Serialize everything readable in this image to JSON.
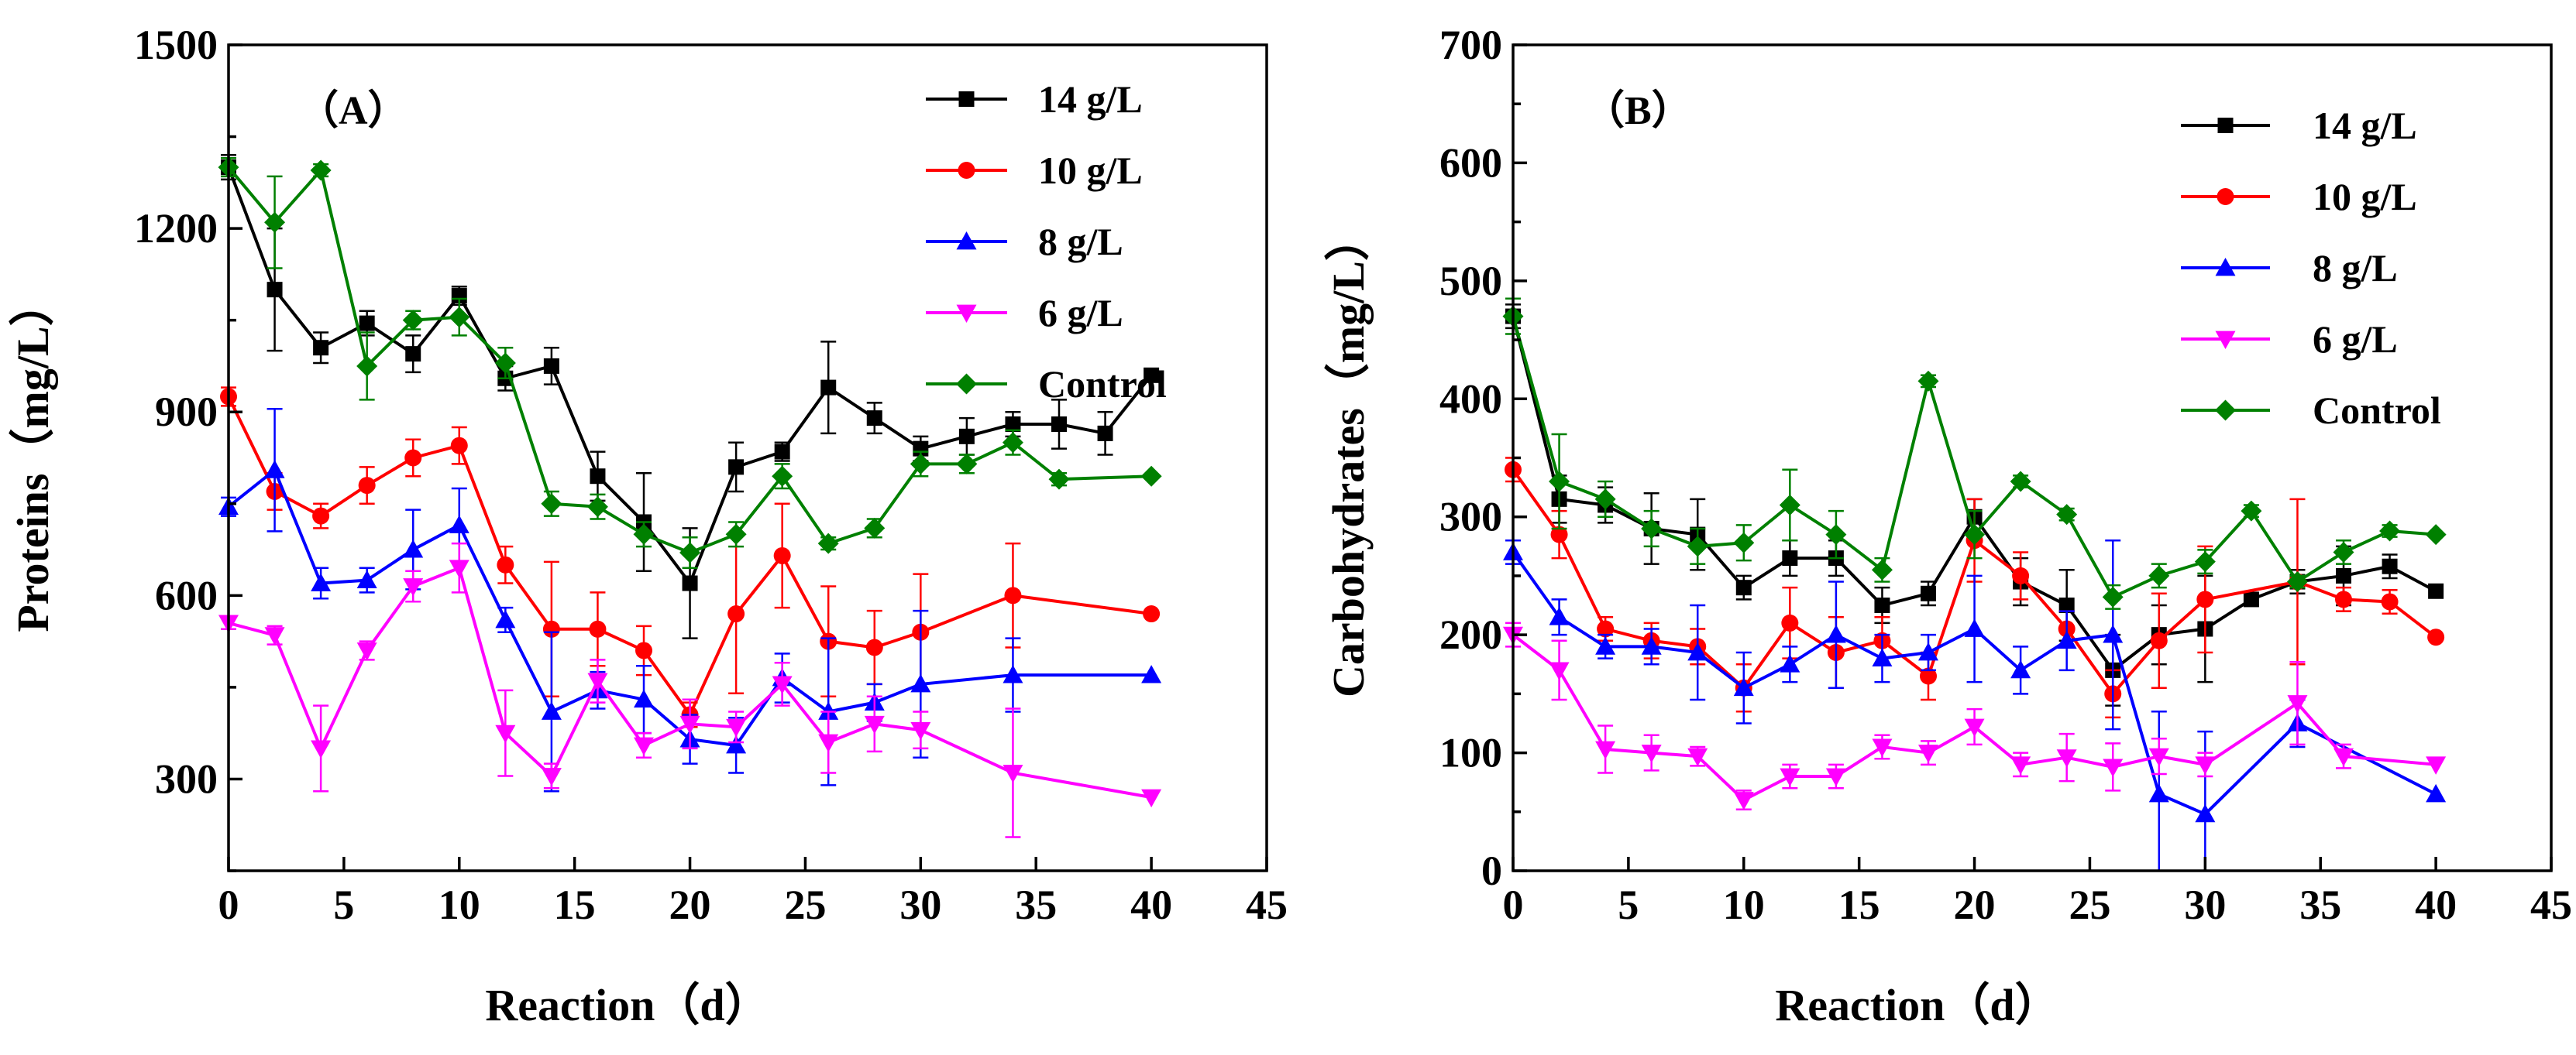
{
  "chart_data": [
    {
      "type": "line",
      "panel_label": "（A）",
      "title": "",
      "xlabel": "Reaction（d）",
      "ylabel": "Proteins（mg/L）",
      "xlim": [
        0,
        45
      ],
      "ylim": [
        150,
        1500
      ],
      "xticks": [
        0,
        5,
        10,
        15,
        20,
        25,
        30,
        35,
        40,
        45
      ],
      "yticks": [
        300,
        600,
        900,
        1200,
        1500
      ],
      "legend_position": "top-right",
      "series": [
        {
          "name": "14 g/L",
          "color": "#000000",
          "marker": "square",
          "x": [
            0,
            2,
            4,
            6,
            8,
            10,
            12,
            14,
            16,
            18,
            20,
            22,
            24,
            26,
            28,
            30,
            32,
            34,
            36,
            38,
            40
          ],
          "y": [
            1300,
            1100,
            1005,
            1045,
            995,
            1090,
            955,
            975,
            795,
            720,
            620,
            810,
            835,
            940,
            890,
            840,
            860,
            880,
            880,
            865,
            960
          ],
          "err": [
            20,
            100,
            25,
            20,
            30,
            15,
            20,
            30,
            40,
            80,
            90,
            40,
            15,
            75,
            25,
            20,
            30,
            20,
            40,
            35,
            0
          ]
        },
        {
          "name": "10 g/L",
          "color": "#ff0000",
          "marker": "circle",
          "x": [
            0,
            2,
            4,
            6,
            8,
            10,
            12,
            14,
            16,
            18,
            20,
            22,
            24,
            26,
            28,
            30,
            34,
            40
          ],
          "y": [
            925,
            770,
            730,
            780,
            825,
            845,
            650,
            545,
            545,
            510,
            405,
            570,
            665,
            525,
            515,
            540,
            600,
            570
          ],
          "err": [
            15,
            30,
            20,
            30,
            30,
            30,
            30,
            110,
            60,
            40,
            20,
            130,
            85,
            90,
            60,
            95,
            85,
            0
          ]
        },
        {
          "name": "8 g/L",
          "color": "#0000ff",
          "marker": "triangle-up",
          "x": [
            0,
            2,
            4,
            6,
            8,
            10,
            12,
            14,
            16,
            18,
            20,
            22,
            24,
            26,
            28,
            30,
            34,
            40
          ],
          "y": [
            745,
            805,
            620,
            625,
            675,
            715,
            560,
            410,
            445,
            430,
            365,
            355,
            465,
            410,
            425,
            455,
            470,
            470
          ],
          "err": [
            15,
            100,
            25,
            20,
            65,
            60,
            20,
            130,
            30,
            55,
            40,
            45,
            40,
            120,
            30,
            120,
            60,
            0
          ]
        },
        {
          "name": "6 g/L",
          "color": "#ff00ff",
          "marker": "triangle-down",
          "x": [
            0,
            2,
            4,
            6,
            8,
            10,
            12,
            14,
            16,
            18,
            20,
            22,
            24,
            26,
            28,
            30,
            34,
            40
          ],
          "y": [
            555,
            535,
            350,
            510,
            615,
            645,
            375,
            305,
            460,
            355,
            390,
            385,
            455,
            360,
            390,
            380,
            310,
            270
          ],
          "err": [
            10,
            15,
            70,
            15,
            25,
            40,
            70,
            20,
            35,
            20,
            40,
            25,
            35,
            50,
            45,
            30,
            105,
            0
          ]
        },
        {
          "name": "Control",
          "color": "#008000",
          "marker": "diamond",
          "x": [
            0,
            2,
            4,
            6,
            8,
            10,
            12,
            14,
            16,
            18,
            20,
            22,
            24,
            26,
            28,
            30,
            32,
            34,
            36,
            40
          ],
          "y": [
            1300,
            1210,
            1295,
            975,
            1050,
            1055,
            980,
            750,
            745,
            700,
            670,
            700,
            795,
            685,
            710,
            815,
            815,
            850,
            790,
            795
          ],
          "err": [
            15,
            75,
            10,
            55,
            15,
            30,
            25,
            20,
            20,
            20,
            25,
            20,
            20,
            10,
            15,
            20,
            15,
            20,
            10,
            0
          ]
        }
      ]
    },
    {
      "type": "line",
      "panel_label": "（B）",
      "title": "",
      "xlabel": "Reaction（d）",
      "ylabel": "Carbohydrates（mg/L）",
      "xlim": [
        0,
        45
      ],
      "ylim": [
        0,
        700
      ],
      "xticks": [
        0,
        5,
        10,
        15,
        20,
        25,
        30,
        35,
        40,
        45
      ],
      "yticks": [
        0,
        100,
        200,
        300,
        400,
        500,
        600,
        700
      ],
      "legend_position": "top-right",
      "series": [
        {
          "name": "14 g/L",
          "color": "#000000",
          "marker": "square",
          "x": [
            0,
            2,
            4,
            6,
            8,
            10,
            12,
            14,
            16,
            18,
            20,
            22,
            24,
            26,
            28,
            30,
            32,
            34,
            36,
            38,
            40
          ],
          "y": [
            470,
            315,
            310,
            290,
            285,
            240,
            265,
            265,
            225,
            235,
            300,
            245,
            225,
            170,
            200,
            205,
            230,
            245,
            250,
            258,
            237
          ],
          "err": [
            10,
            20,
            15,
            30,
            30,
            10,
            15,
            15,
            15,
            10,
            15,
            20,
            30,
            30,
            25,
            45,
            5,
            10,
            25,
            10,
            0
          ]
        },
        {
          "name": "10 g/L",
          "color": "#ff0000",
          "marker": "circle",
          "x": [
            0,
            2,
            4,
            6,
            8,
            10,
            12,
            14,
            16,
            18,
            20,
            22,
            24,
            26,
            28,
            30,
            34,
            36,
            38,
            40
          ],
          "y": [
            340,
            285,
            205,
            195,
            190,
            155,
            210,
            185,
            195,
            165,
            280,
            250,
            205,
            150,
            195,
            230,
            245,
            230,
            228,
            198
          ],
          "err": [
            10,
            20,
            10,
            15,
            15,
            20,
            30,
            30,
            20,
            20,
            35,
            20,
            15,
            20,
            40,
            45,
            70,
            10,
            10,
            0
          ]
        },
        {
          "name": "8 g/L",
          "color": "#0000ff",
          "marker": "triangle-up",
          "x": [
            0,
            2,
            4,
            6,
            8,
            10,
            12,
            14,
            16,
            18,
            20,
            22,
            24,
            26,
            28,
            30,
            34,
            40
          ],
          "y": [
            270,
            215,
            190,
            190,
            185,
            155,
            175,
            200,
            180,
            185,
            205,
            170,
            195,
            200,
            65,
            48,
            125,
            65
          ],
          "err": [
            10,
            15,
            10,
            15,
            40,
            30,
            15,
            45,
            20,
            15,
            45,
            20,
            25,
            80,
            70,
            70,
            20,
            0
          ]
        },
        {
          "name": "6 g/L",
          "color": "#ff00ff",
          "marker": "triangle-down",
          "x": [
            0,
            2,
            4,
            6,
            8,
            10,
            12,
            14,
            16,
            18,
            20,
            22,
            24,
            26,
            28,
            30,
            34,
            36,
            40
          ],
          "y": [
            200,
            170,
            103,
            100,
            97,
            60,
            80,
            80,
            105,
            100,
            122,
            90,
            96,
            88,
            97,
            90,
            142,
            97,
            90
          ],
          "err": [
            10,
            25,
            20,
            15,
            8,
            8,
            10,
            10,
            10,
            10,
            15,
            10,
            20,
            20,
            15,
            10,
            35,
            10,
            0
          ]
        },
        {
          "name": "Control",
          "color": "#008000",
          "marker": "diamond",
          "x": [
            0,
            2,
            4,
            6,
            8,
            10,
            12,
            14,
            16,
            18,
            20,
            22,
            24,
            26,
            28,
            30,
            32,
            34,
            36,
            38,
            40
          ],
          "y": [
            470,
            330,
            315,
            290,
            275,
            278,
            310,
            285,
            255,
            415,
            285,
            330,
            302,
            232,
            250,
            262,
            305,
            245,
            270,
            288,
            285
          ],
          "err": [
            15,
            40,
            15,
            15,
            15,
            15,
            30,
            20,
            10,
            5,
            20,
            5,
            5,
            10,
            10,
            10,
            5,
            5,
            10,
            5,
            0
          ]
        }
      ]
    }
  ]
}
